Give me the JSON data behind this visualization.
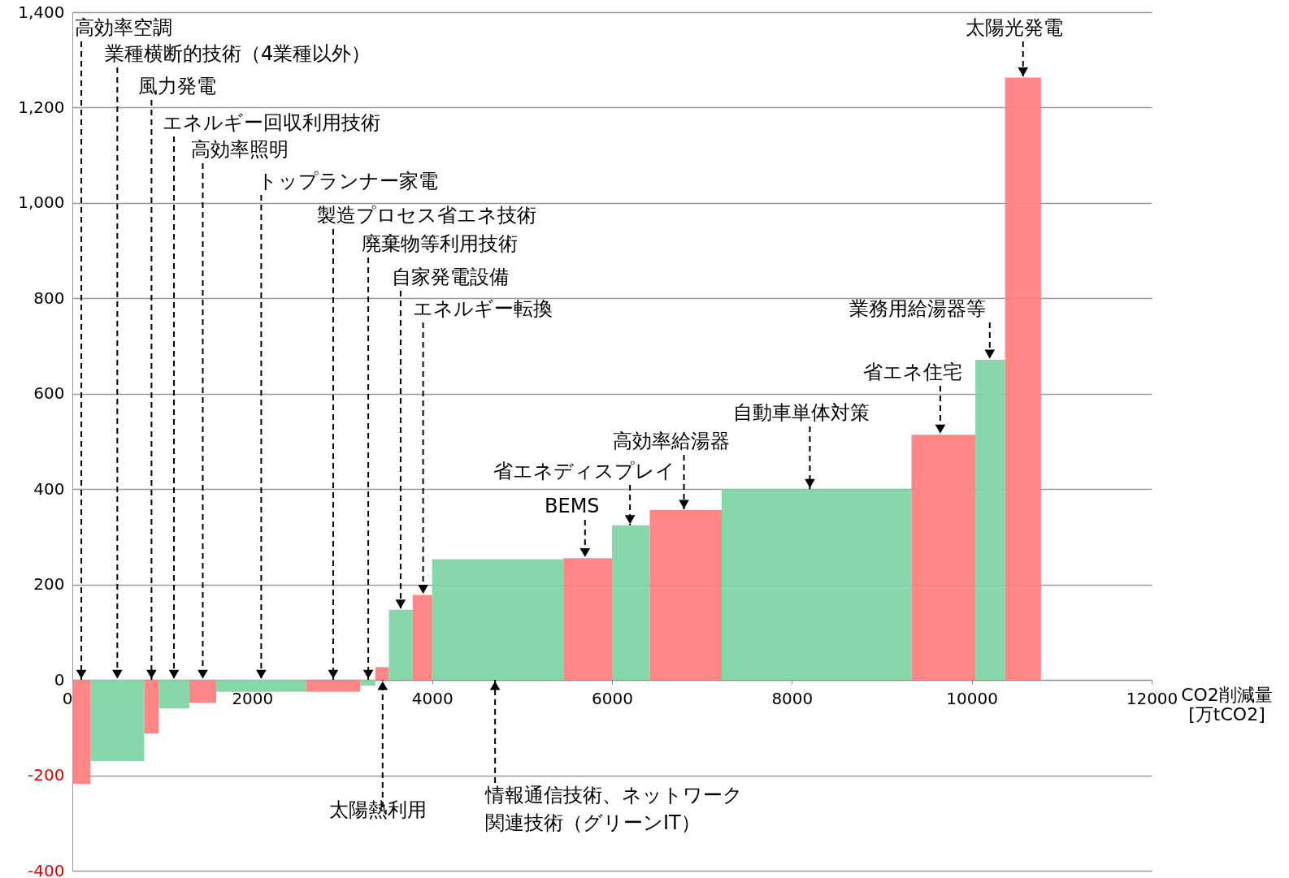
{
  "chart_data": {
    "type": "histogram",
    "xlabel": "CO2削減量\n[万tCO2]",
    "bins": [
      0,
      200,
      800,
      960,
      1300,
      1600,
      2600,
      3200,
      3370,
      3520,
      3785,
      4000,
      5460,
      6000,
      6420,
      7220,
      9330,
      10040,
      10370,
      10770
    ],
    "values": [
      -218,
      -170,
      -112,
      -60,
      -48,
      -25,
      -25,
      -12,
      27,
      147,
      178,
      253,
      255,
      324,
      356,
      400,
      514,
      671,
      1263
    ],
    "colors": [
      "#ff8080",
      "#80d6a6",
      "#ff8080",
      "#80d6a6",
      "#ff8080",
      "#80d6a6",
      "#ff8080",
      "#80d6a6",
      "#ff8080",
      "#80d6a6",
      "#ff8080",
      "#80d6a6",
      "#ff8080",
      "#80d6a6",
      "#ff8080",
      "#80d6a6",
      "#ff8080",
      "#80d6a6",
      "#ff8080"
    ],
    "xlim": [
      0,
      12000
    ],
    "xticks": [
      0,
      2000,
      4000,
      6000,
      8000,
      10000,
      12000
    ],
    "ylim": [
      -400,
      1400
    ],
    "yticks": [
      -400,
      -200,
      0,
      200,
      400,
      600,
      800,
      {
        "value": 1000,
        "label": "1,000"
      },
      {
        "value": 1200,
        "label": "1,200"
      },
      {
        "value": 1400,
        "label": "1,400"
      }
    ],
    "grid": "y",
    "annotations": [
      {
        "text": "高効率空調",
        "x": 100,
        "y": 0
      },
      {
        "text": "業種横断的技術（4業種以外）",
        "x": 500,
        "y": 0
      },
      {
        "text": "風力発電",
        "x": 880,
        "y": 0
      },
      {
        "text": "エネルギー回収利用技術",
        "x": 1130,
        "y": 0
      },
      {
        "text": "高効率照明",
        "x": 1450,
        "y": 0
      },
      {
        "text": "トップランナー家電",
        "x": 2100,
        "y": 0
      },
      {
        "text": "製造プロセス省エネ技術",
        "x": 2900,
        "y": 0
      },
      {
        "text": "廃棄物等利用技術",
        "x": 3290,
        "y": 0
      },
      {
        "text": "太陽熱利用",
        "x": 3450,
        "y": 0
      },
      {
        "text": "自家発電設備",
        "x": 3650,
        "y": 147
      },
      {
        "text": "エネルギー転換",
        "x": 3900,
        "y": 178
      },
      {
        "text": "情報通信技術、ネットワーク関連技術（グリーンIT）",
        "x": 4700,
        "y": 0
      },
      {
        "text": "BEMS",
        "x": 5700,
        "y": 255
      },
      {
        "text": "省エネディスプレイ",
        "x": 6200,
        "y": 324
      },
      {
        "text": "高効率給湯器",
        "x": 6800,
        "y": 356
      },
      {
        "text": "自動車単体対策",
        "x": 8200,
        "y": 400
      },
      {
        "text": "省エネ住宅",
        "x": 9650,
        "y": 514
      },
      {
        "text": "業務用給湯器等",
        "x": 10200,
        "y": 671
      },
      {
        "text": "太陽光発電",
        "x": 10570,
        "y": 1263
      }
    ]
  }
}
